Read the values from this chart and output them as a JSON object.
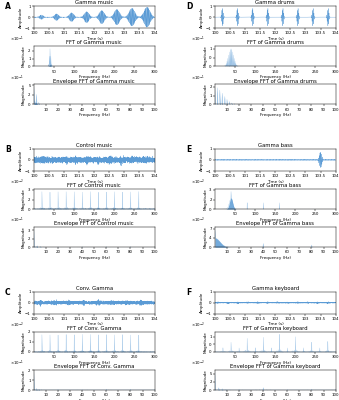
{
  "panels": [
    {
      "label": "A",
      "title1": "Gamma music",
      "title2": "FFT of Gamma music",
      "title3": "Envelope FFT of Gamma music",
      "waveform_type": "gamma_music"
    },
    {
      "label": "D",
      "title1": "Gamma drums",
      "title2": "FFT of Gamma drums",
      "title3": "Envelope FFT of Gamma drums",
      "waveform_type": "gamma_drums"
    },
    {
      "label": "B",
      "title1": "Control music",
      "title2": "FFT of Control music",
      "title3": "Envelope FFT of Control music",
      "waveform_type": "control_music"
    },
    {
      "label": "E",
      "title1": "Gamma bass",
      "title2": "FFT of Gamma bass",
      "title3": "Envelope FFT of Gamma bass",
      "waveform_type": "gamma_bass"
    },
    {
      "label": "C",
      "title1": "Conv. Gamma",
      "title2": "FFT of Conv. Gamma",
      "title3": "Envelope FFT of Conv. Gamma",
      "waveform_type": "conv_gamma"
    },
    {
      "label": "F",
      "title1": "Gamma keyboard",
      "title2": "FFT of Gamma keyboard",
      "title3": "Envelope FFT of Gamma keyboard",
      "waveform_type": "gamma_keyboard"
    }
  ],
  "color": "#5b9bd5",
  "time_xlim": [
    100,
    104
  ],
  "time_xticks": [
    100,
    100.5,
    101,
    101.5,
    102,
    102.5,
    103,
    103.5,
    104
  ],
  "fft_xlim": [
    0,
    300
  ],
  "fft_xticks": [
    50,
    100,
    150,
    200,
    250,
    300
  ],
  "env_xlim": [
    0,
    100
  ],
  "env_xticks": [
    10,
    20,
    30,
    40,
    50,
    60,
    70,
    80,
    90,
    100
  ]
}
